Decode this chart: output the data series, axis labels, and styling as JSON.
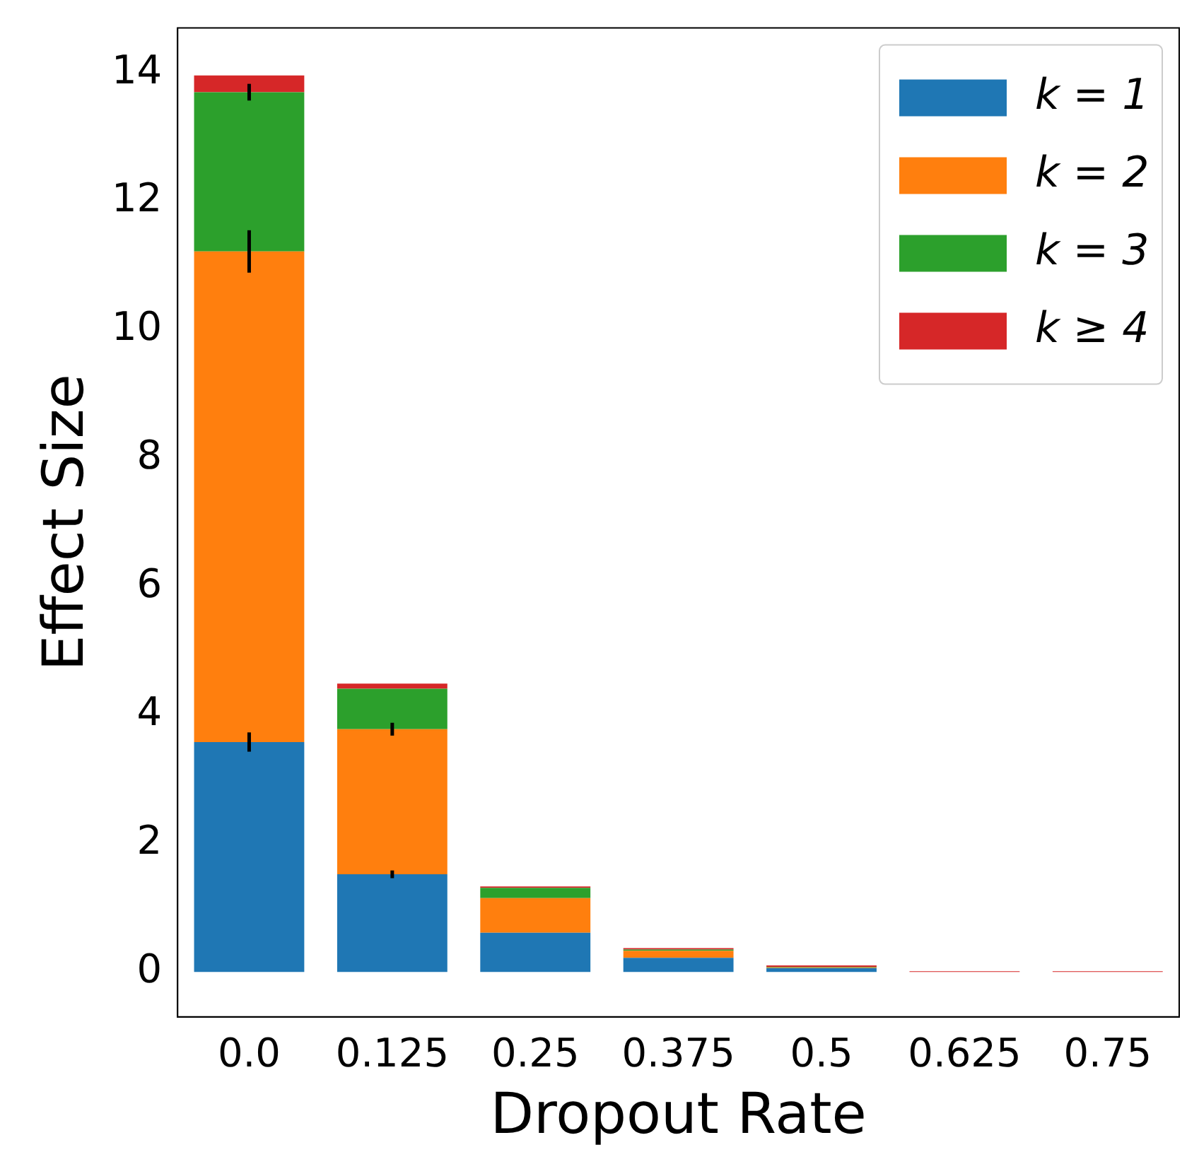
{
  "chart_data": {
    "type": "bar",
    "stacked": true,
    "xlabel": "Dropout Rate",
    "ylabel": "Effect Size",
    "categories": [
      "0.0",
      "0.125",
      "0.25",
      "0.375",
      "0.5",
      "0.625",
      "0.75"
    ],
    "series": [
      {
        "name": "k = 1",
        "color": "#1f77b4",
        "values": [
          3.58,
          1.52,
          0.61,
          0.22,
          0.06,
          0,
          0
        ],
        "errors": [
          0.15,
          0.06,
          null,
          null,
          null,
          null,
          null
        ]
      },
      {
        "name": "k = 2",
        "color": "#ff7f0e",
        "values": [
          7.64,
          2.26,
          0.54,
          0.11,
          0.01,
          0,
          0
        ],
        "errors": [
          0.33,
          0.1,
          null,
          null,
          null,
          null,
          null
        ]
      },
      {
        "name": "k = 3",
        "color": "#2ca02c",
        "values": [
          2.48,
          0.63,
          0.16,
          0.02,
          0.01,
          0,
          0
        ],
        "errors": [
          0.13,
          null,
          null,
          null,
          null,
          null,
          null
        ]
      },
      {
        "name": "k ≥ 4",
        "color": "#d62728",
        "values": [
          0.26,
          0.08,
          0.02,
          0.02,
          0.02,
          0.01,
          0.01
        ],
        "errors": [
          null,
          null,
          null,
          null,
          null,
          null,
          null
        ]
      }
    ],
    "ylim": [
      -0.7,
      14.7
    ],
    "yticks": [
      0,
      2,
      4,
      6,
      8,
      10,
      12,
      14
    ],
    "grid": false,
    "legend": "top right"
  }
}
